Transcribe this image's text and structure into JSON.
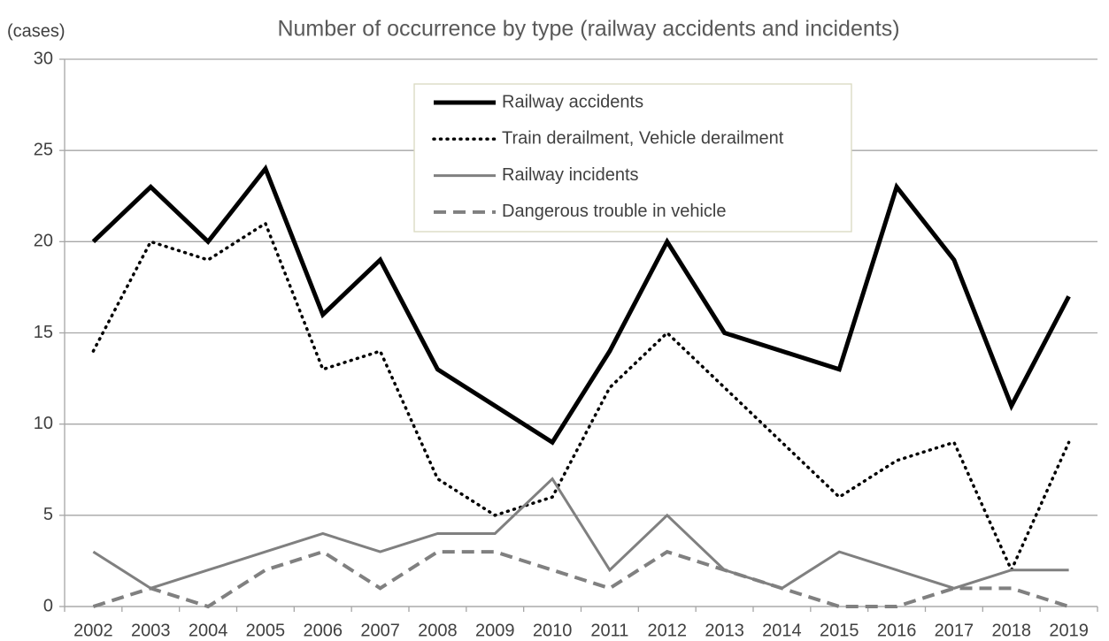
{
  "chart_data": {
    "type": "line",
    "title": "Number of occurrence by type (railway accidents and incidents)",
    "y_label": "(cases)",
    "categories": [
      "2002",
      "2003",
      "2004",
      "2005",
      "2006",
      "2007",
      "2008",
      "2009",
      "2010",
      "2011",
      "2012",
      "2013",
      "2014",
      "2015",
      "2016",
      "2017",
      "2018",
      "2019"
    ],
    "series": [
      {
        "name": "Railway accidents",
        "color": "#000000",
        "line_style": "thick",
        "values": [
          20,
          23,
          20,
          24,
          16,
          19,
          13,
          11,
          9,
          14,
          20,
          15,
          14,
          13,
          23,
          19,
          11,
          17
        ]
      },
      {
        "name": "Train derailment, Vehicle derailment",
        "color": "#000000",
        "line_style": "dotted",
        "values": [
          14,
          20,
          19,
          21,
          13,
          14,
          7,
          5,
          6,
          12,
          15,
          12,
          9,
          6,
          8,
          9,
          2,
          9
        ]
      },
      {
        "name": "Railway incidents",
        "color": "#808080",
        "line_style": "solid",
        "values": [
          3,
          1,
          2,
          3,
          4,
          3,
          4,
          4,
          7,
          2,
          5,
          2,
          1,
          3,
          2,
          1,
          2,
          2
        ]
      },
      {
        "name": "Dangerous trouble in vehicle",
        "color": "#808080",
        "line_style": "dashed",
        "values": [
          0,
          1,
          0,
          2,
          3,
          1,
          3,
          3,
          2,
          1,
          3,
          2,
          1,
          0,
          0,
          1,
          1,
          0
        ]
      }
    ],
    "ylim": [
      0,
      30
    ],
    "yticks": [
      0,
      5,
      10,
      15,
      20,
      25,
      30
    ],
    "grid": true,
    "legend": "top-center"
  }
}
